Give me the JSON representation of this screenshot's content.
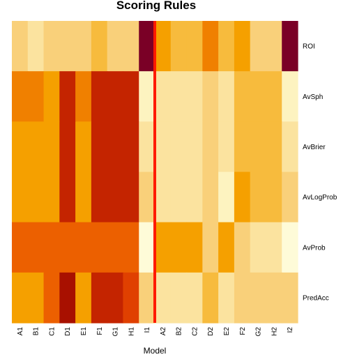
{
  "chart_data": {
    "type": "heatmap",
    "title": "Scoring Rules",
    "xlabel": "Model",
    "columns": [
      "A1",
      "B1",
      "C1",
      "D1",
      "E1",
      "F1",
      "G1",
      "H1",
      "I1",
      "A2",
      "B2",
      "C2",
      "D2",
      "E2",
      "F2",
      "G2",
      "H2",
      "I2"
    ],
    "rows": [
      "ROI",
      "AvSph",
      "AvBrier",
      "AvLogProb",
      "AvProb",
      "PredAcc"
    ],
    "scale": "heat-colors (low = dark red, high = pale yellow)",
    "values": [
      [
        5,
        6,
        5,
        5,
        5,
        4,
        5,
        5,
        0,
        3,
        4,
        4,
        2,
        4,
        3,
        5,
        5,
        0
      ],
      [
        2,
        3,
        3,
        1,
        2,
        1,
        1,
        1,
        8,
        7,
        7,
        7,
        6,
        7,
        4,
        4,
        4,
        8
      ],
      [
        3,
        3,
        3,
        1,
        3,
        1,
        1,
        1,
        7,
        7,
        7,
        7,
        6,
        7,
        4,
        4,
        4,
        7
      ],
      [
        3,
        3,
        3,
        1,
        3,
        1,
        1,
        1,
        6,
        7,
        7,
        7,
        6,
        8,
        3,
        4,
        4,
        6
      ],
      [
        2,
        2,
        2,
        2,
        2,
        2,
        2,
        2,
        9,
        3,
        3,
        3,
        6,
        3,
        6,
        7,
        7,
        9
      ],
      [
        3,
        3,
        2,
        0,
        3,
        1,
        1,
        2,
        6,
        7,
        7,
        7,
        4,
        7,
        6,
        6,
        6,
        6
      ]
    ],
    "palette": [
      "#7a0026",
      "#a81000",
      "#c42400",
      "#e04000",
      "#ec6000",
      "#f08000",
      "#f5a000",
      "#f7bb3d",
      "#f9d07a",
      "#fbe39f",
      "#fdf3c0",
      "#fefbd8"
    ],
    "value_to_color": {
      "0": "#7a0026",
      "1": "#c42400",
      "2": "#ec6000",
      "3": "#f5a000",
      "4": "#f7bb3d",
      "5": "#f9d07a",
      "6": "#f9d07a",
      "7": "#fbe39f",
      "8": "#fdf3c0",
      "9": "#fefbd8"
    },
    "cell_overrides": [
      {
        "row": 0,
        "col": 1,
        "color": "#fbe39f"
      },
      {
        "row": 0,
        "col": 12,
        "color": "#f08000"
      },
      {
        "row": 1,
        "col": 0,
        "color": "#f08000"
      },
      {
        "row": 1,
        "col": 1,
        "color": "#f08000"
      },
      {
        "row": 1,
        "col": 3,
        "color": "#c42400"
      },
      {
        "row": 1,
        "col": 4,
        "color": "#f08000"
      },
      {
        "row": 1,
        "col": 13,
        "color": "#fbe39f"
      },
      {
        "row": 2,
        "col": 2,
        "color": "#f5a000"
      },
      {
        "row": 3,
        "col": 13,
        "color": "#fdf3c0"
      },
      {
        "row": 4,
        "col": 13,
        "color": "#f5a000"
      },
      {
        "row": 5,
        "col": 3,
        "color": "#a81000"
      },
      {
        "row": 5,
        "col": 7,
        "color": "#e04000"
      },
      {
        "row": 5,
        "col": 12,
        "color": "#f7bb3d"
      },
      {
        "row": 5,
        "col": 8,
        "color": "#f9d07a"
      }
    ],
    "separator": {
      "after_column": "I1",
      "color": "#ff1a00"
    }
  }
}
